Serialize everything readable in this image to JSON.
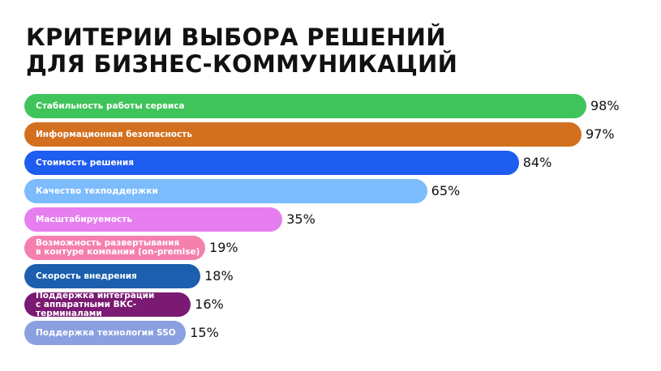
{
  "chart_data": {
    "type": "bar",
    "orientation": "horizontal",
    "title": "КРИТЕРИИ ВЫБОРА РЕШЕНИЙ\nДЛЯ БИЗНЕС-КОММУНИКАЦИЙ",
    "categories": [
      "Стабильность работы сервиса",
      "Информационная безопасность",
      "Стоимость решения",
      "Качество техподдержки",
      "Масштабируемость",
      "Возможность развертывания\nв контуре компании (on-premise)",
      "Скорость внедрения",
      "Поддержка интеграции\nс аппаратными ВКС-терминалами",
      "Поддержка технологии SSO"
    ],
    "values": [
      98,
      97,
      84,
      65,
      35,
      19,
      18,
      16,
      15
    ],
    "value_labels": [
      "98%",
      "97%",
      "84%",
      "65%",
      "35%",
      "19%",
      "18%",
      "16%",
      "15%"
    ],
    "colors": [
      "#3ec45a",
      "#d2701f",
      "#1f5cf0",
      "#7cbcfc",
      "#e67ef0",
      "#f57fad",
      "#1c5fae",
      "#7a1a72",
      "#8aa0e0"
    ]
  }
}
